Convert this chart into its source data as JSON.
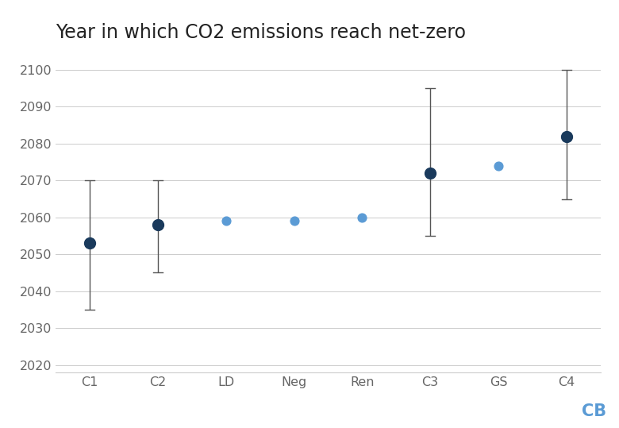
{
  "title": "Year in which CO2 emissions reach net-zero",
  "categories": [
    "C1",
    "C2",
    "LD",
    "Neg",
    "Ren",
    "C3",
    "GS",
    "C4"
  ],
  "centers": [
    2053,
    2058,
    2059,
    2059,
    2060,
    2072,
    2074,
    2082
  ],
  "upper": [
    2070,
    2070,
    null,
    null,
    null,
    2095,
    null,
    2100
  ],
  "lower": [
    2035,
    2045,
    null,
    null,
    null,
    2055,
    null,
    2065
  ],
  "has_errorbars": [
    true,
    true,
    false,
    false,
    false,
    true,
    false,
    true
  ],
  "dot_colors": [
    "#1a3a5c",
    "#1a3a5c",
    "#5b9bd5",
    "#5b9bd5",
    "#5b9bd5",
    "#1a3a5c",
    "#5b9bd5",
    "#1a3a5c"
  ],
  "errorbar_color": "#555555",
  "background_color": "#ffffff",
  "grid_color": "#cccccc",
  "ylim": [
    2018,
    2105
  ],
  "yticks": [
    2020,
    2030,
    2040,
    2050,
    2060,
    2070,
    2080,
    2090,
    2100
  ],
  "title_fontsize": 17,
  "tick_fontsize": 11.5,
  "dot_size_dark": 100,
  "dot_size_light": 60,
  "watermark_text": "CB",
  "watermark_color": "#5b9bd5",
  "watermark_fontsize": 15
}
